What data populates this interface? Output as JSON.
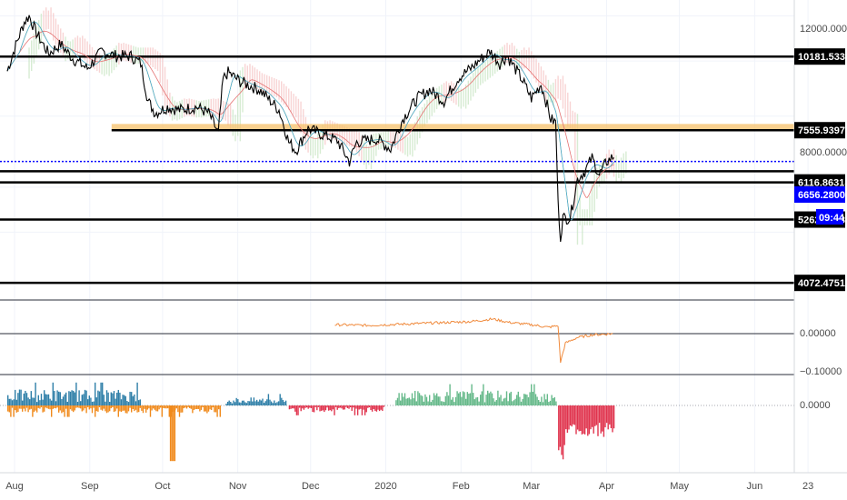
{
  "colors": {
    "background": "#ffffff",
    "grid": "#f0f3fa",
    "level_line": "#000000",
    "support_zone": "#f6c06a",
    "current_price_line": "#0000ff",
    "cloud_bearish": "#f5c6c6",
    "cloud_bullish": "#c9e6c4",
    "price_line": "#000000",
    "oscillator_line": "#f08a3c",
    "hist_blue": "#2f7fa8",
    "hist_orange": "#f08a1c",
    "hist_green": "#66b98a",
    "hist_red": "#e0334d",
    "axis_text": "#4a4a4a"
  },
  "chart_data": [
    {
      "type": "line",
      "name": "price-panel",
      "title": "",
      "x_ticks": [
        "Aug",
        "Sep",
        "Oct",
        "Nov",
        "Dec",
        "2020",
        "Feb",
        "Mar",
        "Apr",
        "May",
        "Jun",
        "23"
      ],
      "y_tick_labels": [
        "12000.00000",
        "8000.00000",
        "6000"
      ],
      "ylim": [
        3800,
        12800
      ],
      "price_path": [
        [
          "2019-07-29",
          9600
        ],
        [
          "2019-08-01",
          10500
        ],
        [
          "2019-08-05",
          11700
        ],
        [
          "2019-08-07",
          12000
        ],
        [
          "2019-08-10",
          11200
        ],
        [
          "2019-08-15",
          10300
        ],
        [
          "2019-08-20",
          10700
        ],
        [
          "2019-08-25",
          10100
        ],
        [
          "2019-08-31",
          9700
        ],
        [
          "2019-09-06",
          10400
        ],
        [
          "2019-09-12",
          10200
        ],
        [
          "2019-09-18",
          10200
        ],
        [
          "2019-09-22",
          9900
        ],
        [
          "2019-09-25",
          8500
        ],
        [
          "2019-09-28",
          8100
        ],
        [
          "2019-10-03",
          8300
        ],
        [
          "2019-10-08",
          8200
        ],
        [
          "2019-10-15",
          8300
        ],
        [
          "2019-10-20",
          8100
        ],
        [
          "2019-10-24",
          7450
        ],
        [
          "2019-10-26",
          9300
        ],
        [
          "2019-10-28",
          9550
        ],
        [
          "2019-11-02",
          9200
        ],
        [
          "2019-11-10",
          8900
        ],
        [
          "2019-11-18",
          8200
        ],
        [
          "2019-11-22",
          7200
        ],
        [
          "2019-11-25",
          6950
        ],
        [
          "2019-11-30",
          7600
        ],
        [
          "2019-12-05",
          7450
        ],
        [
          "2019-12-12",
          7250
        ],
        [
          "2019-12-17",
          6650
        ],
        [
          "2019-12-20",
          7200
        ],
        [
          "2019-12-28",
          7300
        ],
        [
          "2020-01-03",
          7000
        ],
        [
          "2020-01-08",
          7900
        ],
        [
          "2020-01-14",
          8600
        ],
        [
          "2020-01-19",
          8900
        ],
        [
          "2020-01-25",
          8500
        ],
        [
          "2020-01-31",
          9350
        ],
        [
          "2020-02-05",
          9700
        ],
        [
          "2020-02-10",
          10150
        ],
        [
          "2020-02-13",
          10400
        ],
        [
          "2020-02-17",
          9900
        ],
        [
          "2020-02-20",
          10200
        ],
        [
          "2020-02-26",
          9300
        ],
        [
          "2020-03-01",
          8600
        ],
        [
          "2020-03-05",
          9100
        ],
        [
          "2020-03-09",
          7900
        ],
        [
          "2020-03-11",
          7800
        ],
        [
          "2020-03-12",
          5600
        ],
        [
          "2020-03-13",
          4900
        ],
        [
          "2020-03-14",
          5300
        ],
        [
          "2020-03-17",
          5300
        ],
        [
          "2020-03-20",
          6200
        ],
        [
          "2020-03-23",
          6400
        ],
        [
          "2020-03-26",
          6750
        ],
        [
          "2020-03-29",
          6300
        ],
        [
          "2020-04-01",
          6650
        ],
        [
          "2020-04-04",
          6800
        ]
      ],
      "horizontal_levels": [
        {
          "label": "10181.53378",
          "value": 10181.53
        },
        {
          "label": "7555.93973",
          "value": 7555.94
        },
        {
          "label": "6116.86318",
          "value": 6116.86
        },
        {
          "label": "5262.30331",
          "value": 5262.3
        },
        {
          "label": "4072.47519",
          "value": 4072.48
        }
      ],
      "support_zone": [
        7555.94,
        7750
      ],
      "current_price": {
        "label": "6656.28000",
        "value": 6656.28,
        "countdown": "09:44"
      },
      "extra_level": 6400
    },
    {
      "type": "line",
      "name": "oscillator-panel",
      "y_tick_labels": [
        "0.00000",
        "−0.10000"
      ],
      "ylim": [
        -0.11,
        0.07
      ],
      "values": [
        [
          "2019-12-11",
          0.028
        ],
        [
          "2019-12-25",
          0.026
        ],
        [
          "2020-01-08",
          0.03
        ],
        [
          "2020-01-22",
          0.034
        ],
        [
          "2020-02-05",
          0.038
        ],
        [
          "2020-02-14",
          0.046
        ],
        [
          "2020-02-21",
          0.035
        ],
        [
          "2020-03-01",
          0.028
        ],
        [
          "2020-03-08",
          0.02
        ],
        [
          "2020-03-12",
          0.025
        ],
        [
          "2020-03-13",
          -0.09
        ],
        [
          "2020-03-15",
          -0.03
        ],
        [
          "2020-03-20",
          -0.012
        ],
        [
          "2020-03-26",
          -0.004
        ],
        [
          "2020-04-04",
          0.0
        ]
      ]
    },
    {
      "type": "bar",
      "name": "histogram-panel",
      "y_tick_labels": [
        "0.0000"
      ],
      "segments": [
        {
          "color": "blue",
          "start": "2019-07-29",
          "end": "2019-09-22",
          "peak": 0.7
        },
        {
          "color": "orange",
          "start": "2019-07-29",
          "end": "2019-10-25",
          "peak": -0.35
        },
        {
          "color": "orange",
          "start": "2019-10-04",
          "end": "2019-10-06",
          "peak": -1.7
        },
        {
          "color": "blue",
          "start": "2019-10-27",
          "end": "2019-11-21",
          "peak": 0.35
        },
        {
          "color": "red",
          "start": "2019-11-22",
          "end": "2019-12-31",
          "peak": -0.3
        },
        {
          "color": "green",
          "start": "2020-01-05",
          "end": "2020-03-11",
          "peak": 0.65
        },
        {
          "color": "red",
          "start": "2020-03-12",
          "end": "2020-04-04",
          "peak": -1.75
        }
      ]
    }
  ]
}
